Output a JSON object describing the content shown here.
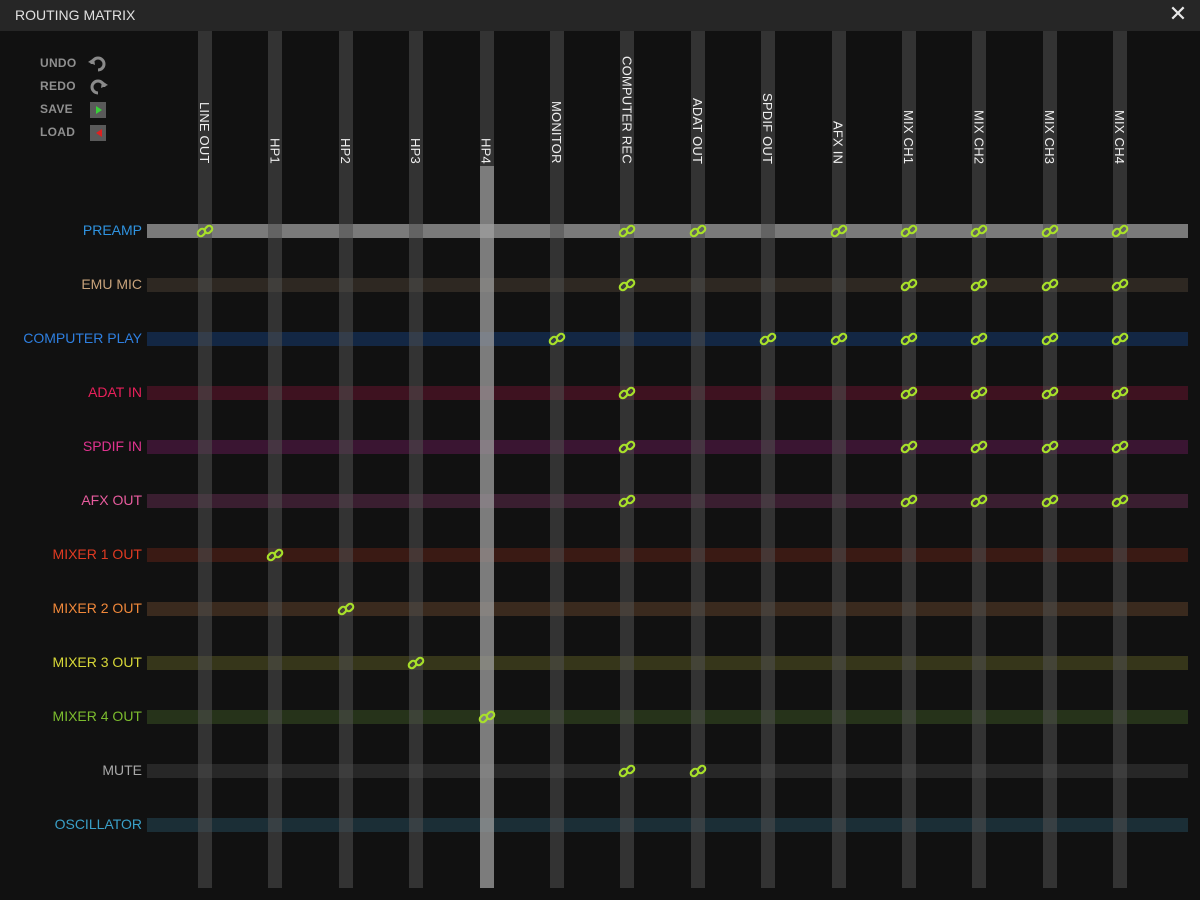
{
  "window": {
    "title": "ROUTING MATRIX",
    "close_icon": "close-icon"
  },
  "controls": [
    {
      "label": "UNDO",
      "icon": "undo-icon"
    },
    {
      "label": "REDO",
      "icon": "redo-icon"
    },
    {
      "label": "SAVE",
      "icon": "save-play-icon"
    },
    {
      "label": "LOAD",
      "icon": "load-play-icon"
    }
  ],
  "columns": [
    "LINE OUT",
    "HP1",
    "HP2",
    "HP3",
    "HP4",
    "MONITOR",
    "COMPUTER REC",
    "ADAT OUT",
    "SPDIF OUT",
    "AFX IN",
    "MIX CH1",
    "MIX CH2",
    "MIX CH3",
    "MIX CH4"
  ],
  "selected_column": "HP4",
  "selected_row": "PREAMP",
  "rows": [
    {
      "label": "PREAMP",
      "color": "#2f93e0",
      "bar": "#7a7a7a",
      "links": [
        "LINE OUT",
        "COMPUTER REC",
        "ADAT OUT",
        "AFX IN",
        "MIX CH1",
        "MIX CH2",
        "MIX CH3",
        "MIX CH4"
      ]
    },
    {
      "label": "EMU MIC",
      "color": "#c8a27a",
      "bar": "#2e2822",
      "links": [
        "COMPUTER REC",
        "MIX CH1",
        "MIX CH2",
        "MIX CH3",
        "MIX CH4"
      ]
    },
    {
      "label": "COMPUTER PLAY",
      "color": "#2e7fe0",
      "bar": "#132744",
      "links": [
        "MONITOR",
        "SPDIF OUT",
        "AFX IN",
        "MIX CH1",
        "MIX CH2",
        "MIX CH3",
        "MIX CH4"
      ]
    },
    {
      "label": "ADAT IN",
      "color": "#e8205a",
      "bar": "#3e1220",
      "links": [
        "COMPUTER REC",
        "MIX CH1",
        "MIX CH2",
        "MIX CH3",
        "MIX CH4"
      ]
    },
    {
      "label": "SPDIF IN",
      "color": "#e0338f",
      "bar": "#3a1532",
      "links": [
        "COMPUTER REC",
        "MIX CH1",
        "MIX CH2",
        "MIX CH3",
        "MIX CH4"
      ]
    },
    {
      "label": "AFX OUT",
      "color": "#e85c9e",
      "bar": "#3a1e30",
      "links": [
        "COMPUTER REC",
        "MIX CH1",
        "MIX CH2",
        "MIX CH3",
        "MIX CH4"
      ]
    },
    {
      "label": "MIXER 1 OUT",
      "color": "#e03a22",
      "bar": "#3a1a14",
      "links": [
        "HP1"
      ]
    },
    {
      "label": "MIXER 2 OUT",
      "color": "#f0883a",
      "bar": "#3a2a1e",
      "links": [
        "HP2"
      ]
    },
    {
      "label": "MIXER 3 OUT",
      "color": "#d8d838",
      "bar": "#36361a",
      "links": [
        "HP3"
      ]
    },
    {
      "label": "MIXER 4 OUT",
      "color": "#7cbc2e",
      "bar": "#26331a",
      "links": [
        "HP4"
      ]
    },
    {
      "label": "MUTE",
      "color": "#a8a8a8",
      "bar": "#272727",
      "links": [
        "COMPUTER REC",
        "ADAT OUT"
      ]
    },
    {
      "label": "OSCILLATOR",
      "color": "#3aa0c8",
      "bar": "#1b2e36",
      "links": []
    }
  ],
  "link_icon": "link-chain-icon",
  "link_color": "#a8e02a"
}
